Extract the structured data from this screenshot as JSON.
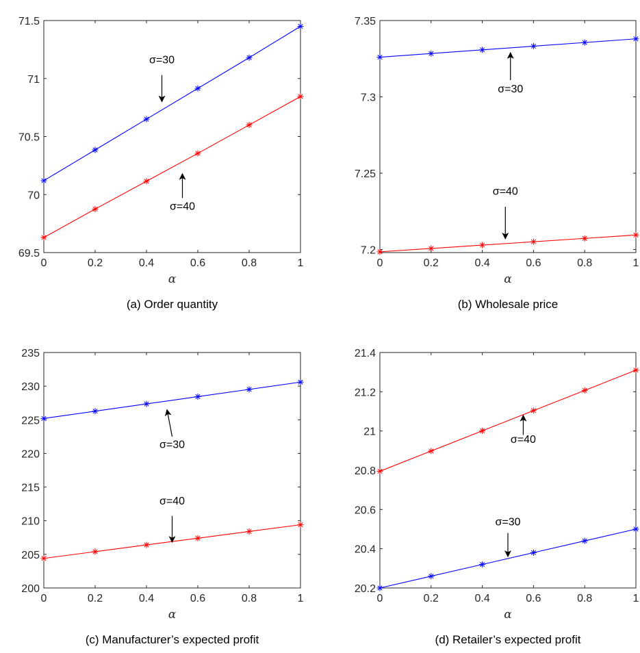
{
  "chart_data": [
    {
      "type": "line",
      "caption": "(a) Order quantity",
      "xlabel": "α",
      "x": [
        0,
        0.2,
        0.4,
        0.6,
        0.8,
        1
      ],
      "xlim": [
        0,
        1
      ],
      "xticks": [
        "0",
        "0.2",
        "0.4",
        "0.6",
        "0.8",
        "1"
      ],
      "ylim": [
        69.5,
        71.5
      ],
      "yticks": [
        "69.5",
        "70",
        "70.5",
        "71",
        "71.5"
      ],
      "series": [
        {
          "name": "σ=30",
          "color": "#0000ff",
          "values": [
            70.12,
            70.385,
            70.65,
            70.915,
            71.18,
            71.45
          ]
        },
        {
          "name": "σ=40",
          "color": "#ff0000",
          "values": [
            69.63,
            69.875,
            70.115,
            70.355,
            70.6,
            70.845
          ]
        }
      ],
      "annotations": [
        {
          "text": "σ=30",
          "x": 0.46,
          "y": 71.13,
          "arrow_from": [
            0.46,
            71.03
          ],
          "arrow_to": [
            0.46,
            70.8
          ]
        },
        {
          "text": "σ=40",
          "x": 0.54,
          "y": 69.87,
          "arrow_from": [
            0.54,
            69.97
          ],
          "arrow_to": [
            0.54,
            70.18
          ]
        }
      ]
    },
    {
      "type": "line",
      "caption": "(b) Wholesale price",
      "xlabel": "α",
      "x": [
        0,
        0.2,
        0.4,
        0.6,
        0.8,
        1
      ],
      "xlim": [
        0,
        1
      ],
      "xticks": [
        "0",
        "0.2",
        "0.4",
        "0.6",
        "0.8",
        "1"
      ],
      "ylim": [
        7.198,
        7.35
      ],
      "yticks": [
        "7.2",
        "7.25",
        "7.3",
        "7.35"
      ],
      "series": [
        {
          "name": "σ=30",
          "color": "#0000ff",
          "values": [
            7.326,
            7.3284,
            7.3308,
            7.3332,
            7.3356,
            7.338
          ]
        },
        {
          "name": "σ=40",
          "color": "#ff0000",
          "values": [
            7.1985,
            7.2007,
            7.2029,
            7.2051,
            7.2073,
            7.2095
          ]
        }
      ],
      "annotations": [
        {
          "text": "σ=30",
          "x": 0.51,
          "y": 7.303,
          "arrow_from": [
            0.51,
            7.311
          ],
          "arrow_to": [
            0.51,
            7.329
          ]
        },
        {
          "text": "σ=40",
          "x": 0.49,
          "y": 7.236,
          "arrow_from": [
            0.49,
            7.228
          ],
          "arrow_to": [
            0.49,
            7.207
          ]
        }
      ]
    },
    {
      "type": "line",
      "caption": "(c) Manufacturer’s expected profit",
      "xlabel": "α",
      "x": [
        0,
        0.2,
        0.4,
        0.6,
        0.8,
        1
      ],
      "xlim": [
        0,
        1
      ],
      "xticks": [
        "0",
        "0.2",
        "0.4",
        "0.6",
        "0.8",
        "1"
      ],
      "ylim": [
        200,
        235
      ],
      "yticks": [
        "200",
        "205",
        "210",
        "215",
        "220",
        "225",
        "230",
        "235"
      ],
      "series": [
        {
          "name": "σ=30",
          "color": "#0000ff",
          "values": [
            225.2,
            226.28,
            227.36,
            228.44,
            229.52,
            230.6
          ]
        },
        {
          "name": "σ=40",
          "color": "#ff0000",
          "values": [
            204.4,
            205.4,
            206.4,
            207.4,
            208.4,
            209.4
          ]
        }
      ],
      "annotations": [
        {
          "text": "σ=30",
          "x": 0.5,
          "y": 220.8,
          "arrow_from": [
            0.5,
            222.5
          ],
          "arrow_to": [
            0.48,
            226.5
          ]
        },
        {
          "text": "σ=40",
          "x": 0.5,
          "y": 212.4,
          "arrow_from": [
            0.5,
            210.7
          ],
          "arrow_to": [
            0.5,
            206.8
          ]
        }
      ]
    },
    {
      "type": "line",
      "caption": "(d) Retailer’s expected profit",
      "xlabel": "α",
      "x": [
        0,
        0.2,
        0.4,
        0.6,
        0.8,
        1
      ],
      "xlim": [
        0,
        1
      ],
      "xticks": [
        "0",
        "0.2",
        "0.4",
        "0.6",
        "0.8",
        "1"
      ],
      "ylim": [
        20.2,
        21.4
      ],
      "yticks": [
        "20.2",
        "20.4",
        "20.6",
        "20.8",
        "21",
        "21.2",
        "21.4"
      ],
      "series": [
        {
          "name": "σ=40",
          "color": "#ff0000",
          "values": [
            20.795,
            20.898,
            21.001,
            21.104,
            21.207,
            21.31
          ]
        },
        {
          "name": "σ=30",
          "color": "#0000ff",
          "values": [
            20.2,
            20.26,
            20.32,
            20.38,
            20.44,
            20.5
          ]
        }
      ],
      "annotations": [
        {
          "text": "σ=40",
          "x": 0.56,
          "y": 20.94,
          "arrow_from": [
            0.56,
            20.98
          ],
          "arrow_to": [
            0.56,
            21.08
          ]
        },
        {
          "text": "σ=30",
          "x": 0.5,
          "y": 20.52,
          "arrow_from": [
            0.5,
            20.48
          ],
          "arrow_to": [
            0.5,
            20.36
          ]
        }
      ]
    }
  ]
}
